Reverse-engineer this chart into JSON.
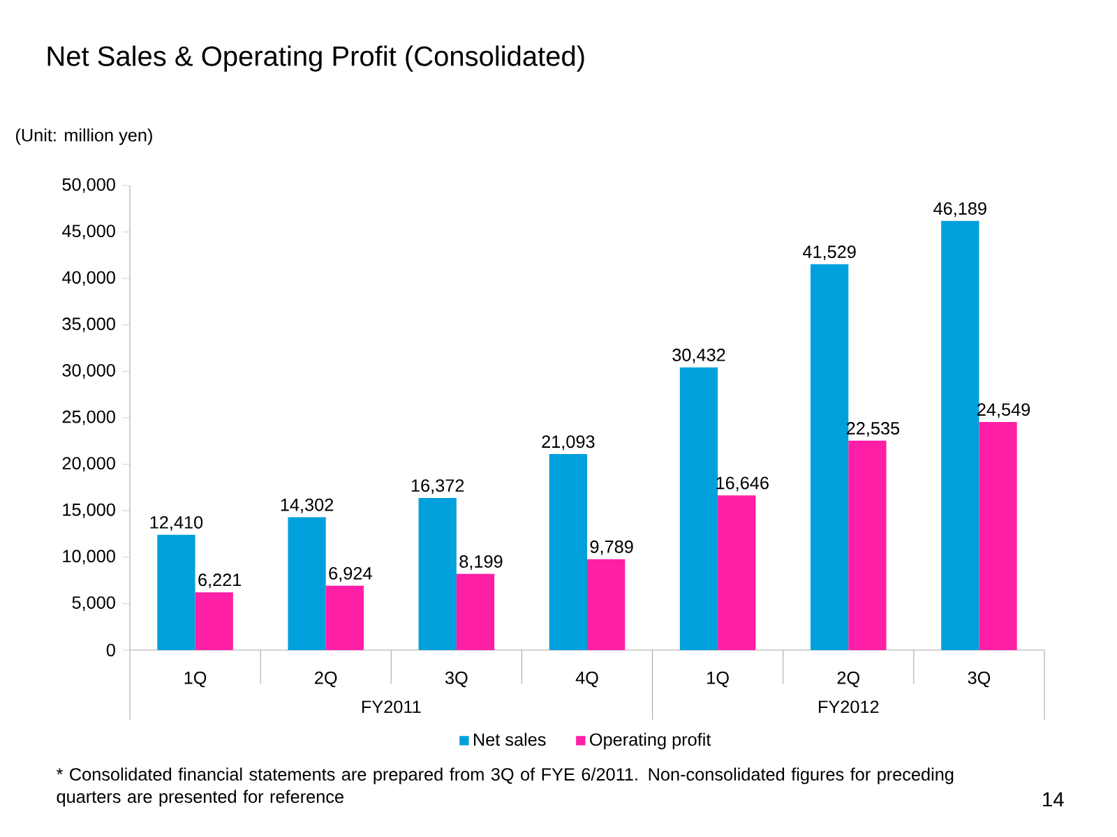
{
  "chart_data": {
    "type": "bar",
    "title": "Net Sales & Operating Profit (Consolidated)",
    "subtitle": "(Unit: million yen)",
    "categories": [
      "1Q",
      "2Q",
      "3Q",
      "4Q",
      "1Q",
      "2Q",
      "3Q"
    ],
    "series": [
      {
        "name": "Net sales",
        "color": "#00a0dc",
        "values": [
          12410,
          14302,
          16372,
          21093,
          30432,
          41529,
          46189
        ],
        "value_labels": [
          "12,410",
          "14,302",
          "16,372",
          "21,093",
          "30,432",
          "41,529",
          "46,189"
        ]
      },
      {
        "name": "Operating profit",
        "color": "#ff1ea6",
        "values": [
          6221,
          6924,
          8199,
          9789,
          16646,
          22535,
          24549
        ],
        "value_labels": [
          "6,221",
          "6,924",
          "8,199",
          "9,789",
          "16,646",
          "22,535",
          "24,549"
        ]
      }
    ],
    "ylim": [
      0,
      50000
    ],
    "yticks": [
      0,
      {
        "value": 5000,
        "label": "5,000"
      },
      {
        "value": 10000,
        "label": "10,000"
      },
      {
        "value": 15000,
        "label": "15,000"
      },
      {
        "value": 20000,
        "label": "20,000"
      },
      {
        "value": 25000,
        "label": "25,000"
      },
      {
        "value": 30000,
        "label": "30,000"
      },
      {
        "value": 35000,
        "label": "35,000"
      },
      {
        "value": 40000,
        "label": "40,000"
      },
      {
        "value": 45000,
        "label": "45,000"
      },
      {
        "value": 50000,
        "label": "50,000"
      }
    ],
    "legend": "bottom",
    "annotations": [
      "FY2011",
      "FY2012",
      "* Consolidated financial statements are prepared from 3Q of FYE 6/2011. Non-consolidated figures for preceding quarters are presented for reference",
      "14"
    ]
  }
}
